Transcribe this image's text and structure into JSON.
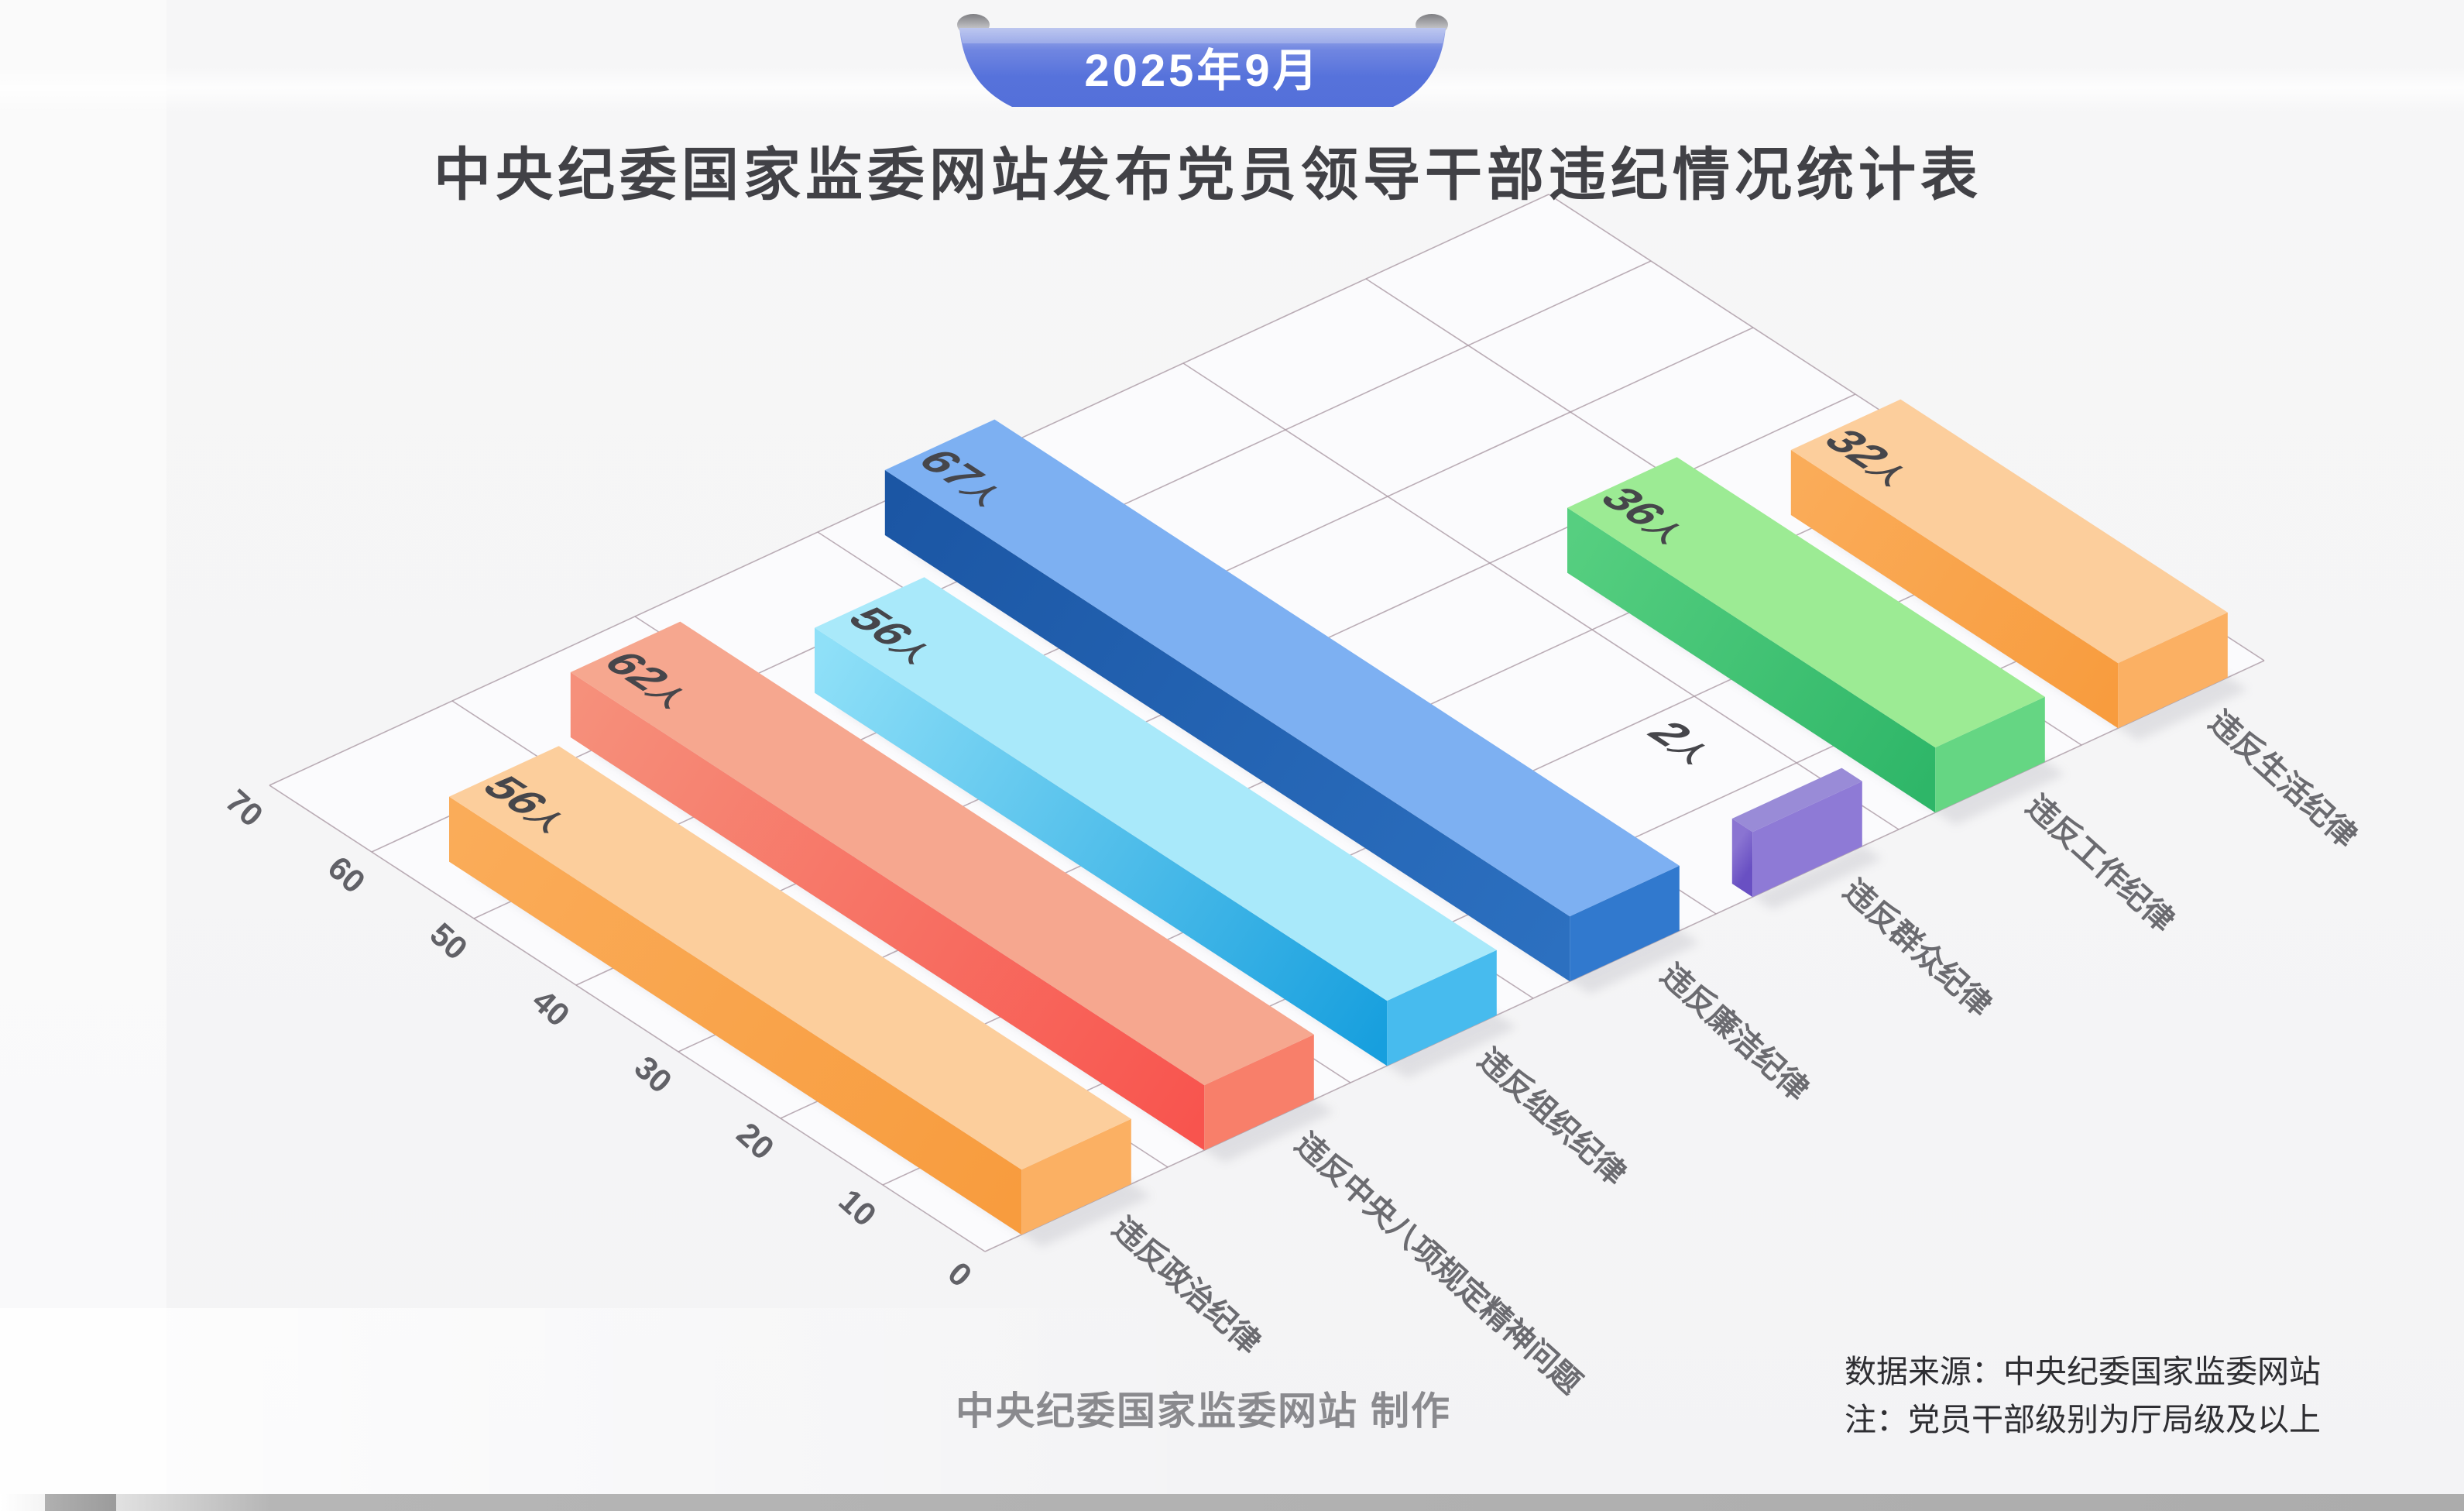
{
  "badge": {
    "label": "2025年9月"
  },
  "title": "中央纪委国家监委网站发布党员领导干部违纪情况统计表",
  "footer": {
    "credit": "中央纪委国家监委网站 制作",
    "source_line": "数据来源：中央纪委国家监委网站",
    "note_line": "注：党员干部级别为厅局级及以上"
  },
  "chart_data": {
    "type": "bar",
    "projection": "isometric-3d",
    "unit_suffix": "人",
    "categories": [
      "违反政治纪律",
      "违反中央八项规定精神问题",
      "违反组织纪律",
      "违反廉洁纪律",
      "违反群众纪律",
      "违反工作纪律",
      "违反生活纪律"
    ],
    "values": [
      56,
      62,
      56,
      67,
      2,
      36,
      32
    ],
    "value_axis": {
      "min": 0,
      "max": 70,
      "step": 10,
      "tick_labels": [
        "0",
        "10",
        "20",
        "30",
        "40",
        "50",
        "60",
        "70"
      ]
    },
    "grid": true,
    "legend_position": "none",
    "bar_colors": [
      {
        "top": "#FCCE9C",
        "side_far": "#FAAC59",
        "side_near": "#F89C3E",
        "end": "#FBB063"
      },
      {
        "top": "#F6A78F",
        "side_far": "#F6907B",
        "side_near": "#F8544E",
        "end": "#F87F6A"
      },
      {
        "top": "#A9E9FA",
        "side_far": "#8FE0F8",
        "side_near": "#179FDE",
        "end": "#47BBEE"
      },
      {
        "top": "#7DB0F2",
        "side_far": "#1B56A4",
        "side_near": "#2C70C0",
        "end": "#3179CE"
      },
      {
        "top": "#998BD7",
        "side_far": "#8A74D2",
        "side_near": "#6950C3",
        "end": "#8E7AD6"
      },
      {
        "top": "#9CEB94",
        "side_far": "#56CF80",
        "side_near": "#2EB668",
        "end": "#65D683"
      },
      {
        "top": "#FCCE9C",
        "side_far": "#FAAC59",
        "side_near": "#F89C3E",
        "end": "#FBB063"
      }
    ],
    "value_label_color": "#46464B",
    "axis_label_color": "#616167",
    "grid_line_color": "#A6949F",
    "plane_color": "#FBFBFD"
  },
  "ribbon": {
    "fill_top": "#AAB7EB",
    "fill_mid": "#5672DB",
    "fill_bottom": "#5470D9",
    "curl_color": "#8A8A8E",
    "text_color": "#FFFFFF"
  },
  "page": {
    "background": "#F5F5F6"
  }
}
